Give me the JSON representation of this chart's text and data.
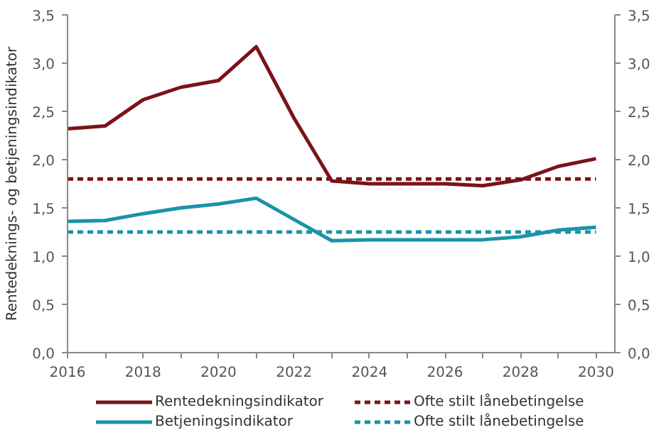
{
  "chart_data": {
    "type": "line",
    "ylabel": "Rentedeknings- og betjeningsindikator",
    "x": [
      2016,
      2017,
      2018,
      2019,
      2020,
      2021,
      2022,
      2023,
      2024,
      2025,
      2026,
      2027,
      2028,
      2029,
      2030
    ],
    "series": [
      {
        "name": "Rentedekningsindikator",
        "color": "#7a1319",
        "line_style": "solid",
        "values": [
          2.32,
          2.35,
          2.62,
          2.75,
          2.82,
          3.17,
          2.43,
          1.78,
          1.75,
          1.75,
          1.75,
          1.73,
          1.79,
          1.93,
          2.01
        ]
      },
      {
        "name": "Betjeningsindikator",
        "color": "#1a93a8",
        "line_style": "solid",
        "values": [
          1.36,
          1.37,
          1.44,
          1.5,
          1.54,
          1.6,
          1.38,
          1.16,
          1.17,
          1.17,
          1.17,
          1.17,
          1.2,
          1.27,
          1.3
        ]
      },
      {
        "name": "Ofte stilt lånebetingelse",
        "color": "#7a1319",
        "line_style": "dashed",
        "values": [
          1.8,
          1.8,
          1.8,
          1.8,
          1.8,
          1.8,
          1.8,
          1.8,
          1.8,
          1.8,
          1.8,
          1.8,
          1.8,
          1.8,
          1.8
        ]
      },
      {
        "name": "Ofte stilt lånebetingelse",
        "color": "#1a93a8",
        "line_style": "dashed",
        "values": [
          1.25,
          1.25,
          1.25,
          1.25,
          1.25,
          1.25,
          1.25,
          1.25,
          1.25,
          1.25,
          1.25,
          1.25,
          1.25,
          1.25,
          1.25
        ]
      }
    ],
    "xlim": [
      2016,
      2030.5
    ],
    "xticks": [
      2016,
      {
        "value": 2017,
        "label": null
      },
      2018,
      {
        "value": 2019,
        "label": null
      },
      2020,
      {
        "value": 2021,
        "label": null
      },
      2022,
      {
        "value": 2023,
        "label": null
      },
      2024,
      {
        "value": 2025,
        "label": null
      },
      2026,
      {
        "value": 2027,
        "label": null
      },
      2028,
      {
        "value": 2029,
        "label": null
      },
      2030
    ],
    "ylim": [
      0,
      3.5
    ],
    "yticks": [
      {
        "value": 0,
        "label": "0,0"
      },
      {
        "value": 0.5,
        "label": "0,5"
      },
      {
        "value": 1,
        "label": "1,0"
      },
      {
        "value": 1.5,
        "label": "1,5"
      },
      {
        "value": 2,
        "label": "2,0"
      },
      {
        "value": 2.5,
        "label": "2,5"
      },
      {
        "value": 3,
        "label": "3,0"
      },
      {
        "value": 3.5,
        "label": "3,5"
      }
    ],
    "y2lim": [
      0,
      3.5
    ],
    "y2ticks": [
      {
        "value": 0,
        "label": "0,0"
      },
      {
        "value": 0.5,
        "label": "0,5"
      },
      {
        "value": 1,
        "label": "1,0"
      },
      {
        "value": 1.5,
        "label": "1,5"
      },
      {
        "value": 2,
        "label": "2,0"
      },
      {
        "value": 2.5,
        "label": "2,5"
      },
      {
        "value": 3,
        "label": "3,0"
      },
      {
        "value": 3.5,
        "label": "3,5"
      }
    ],
    "grid": false,
    "legend": "bottom",
    "marker": "none"
  }
}
